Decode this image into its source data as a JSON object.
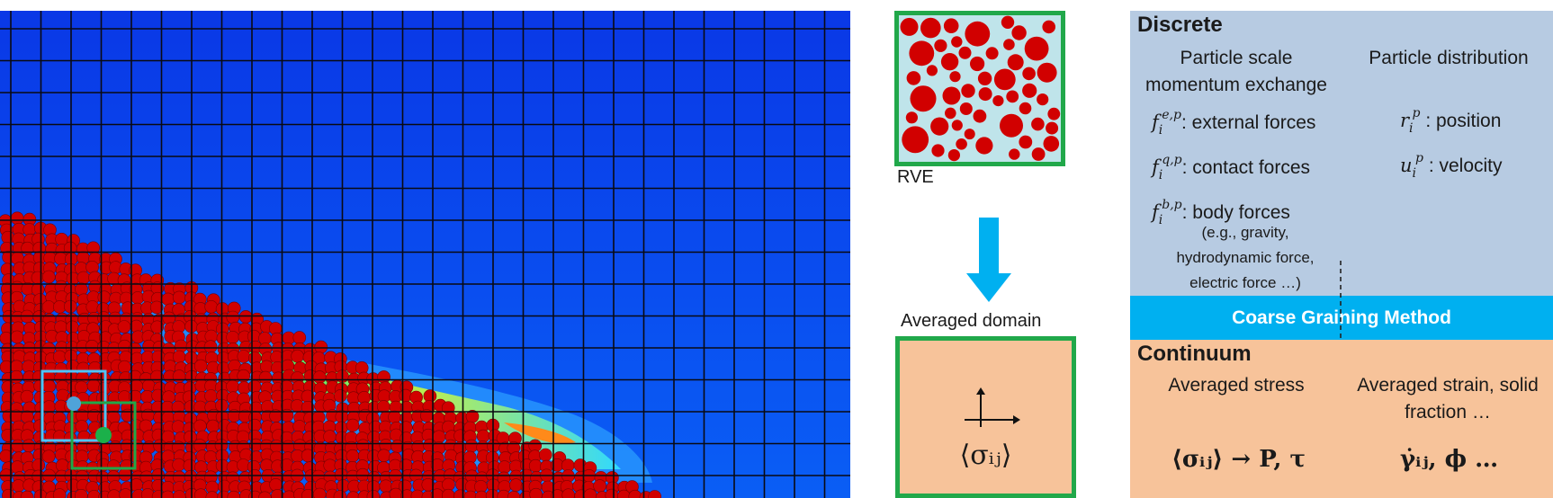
{
  "rve": {
    "label": "RVE"
  },
  "averaged": {
    "label": "Averaged domain",
    "symbol": "⟨σᵢⱼ⟩"
  },
  "discrete": {
    "title": "Discrete",
    "col1_heading_line1": "Particle scale",
    "col1_heading_line2": "momentum exchange",
    "col2_heading": "Particle distribution",
    "external_forces": ": external forces",
    "contact_forces": ": contact forces",
    "body_forces": ": body forces",
    "body_note_line1": "(e.g., gravity,",
    "body_note_line2": "hydrodynamic force,",
    "body_note_line3": "electric force …)",
    "position": " : position",
    "velocity": " : velocity"
  },
  "coarse_graining": {
    "label": "Coarse Graining Method"
  },
  "continuum": {
    "title": "Continuum",
    "col1_heading": "Averaged stress",
    "col2_heading_line1": "Averaged strain, solid",
    "col2_heading_line2": "fraction …",
    "eq1": "⟨σᵢⱼ⟩ → P, τ",
    "eq2": "γ̇ᵢⱼ, ϕ …"
  },
  "colors": {
    "particle": "#d10000",
    "rve_border": "#21a84a",
    "discrete_bg": "#b7cbe2",
    "continuum_bg": "#f7c39a",
    "cgm_bg": "#00b0f0",
    "arrow": "#00b0f0"
  }
}
